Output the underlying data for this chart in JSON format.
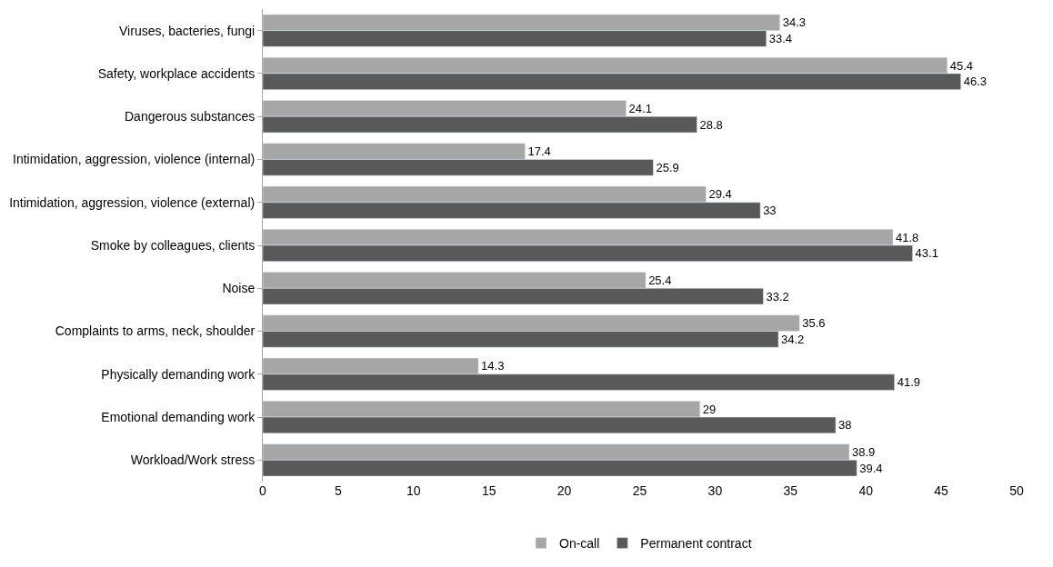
{
  "chart_data": {
    "type": "bar",
    "orientation": "horizontal",
    "categories": [
      "Viruses, bacteries, fungi",
      "Safety, workplace accidents",
      "Dangerous substances",
      "Intimidation, aggression, violence (internal)",
      "Intimidation, aggression, violence (external)",
      "Smoke by colleagues, clients",
      "Noise",
      "Complaints to arms, neck, shoulder",
      "Physically demanding work",
      "Emotional demanding work",
      "Workload/Work stress"
    ],
    "series": [
      {
        "name": "On-call",
        "color": "#a6a6a6",
        "values": [
          34.3,
          45.4,
          24.1,
          17.4,
          29.4,
          41.8,
          25.4,
          35.6,
          14.3,
          29,
          38.9
        ]
      },
      {
        "name": "Permanent contract",
        "color": "#595959",
        "values": [
          33.4,
          46.3,
          28.8,
          25.9,
          33,
          43.1,
          33.2,
          34.2,
          41.9,
          38,
          39.4
        ]
      }
    ],
    "xlim": [
      0,
      50
    ],
    "xticks": [
      0,
      5,
      10,
      15,
      20,
      25,
      30,
      35,
      40,
      45,
      50
    ],
    "data_labels": true,
    "legend": "bottom"
  }
}
